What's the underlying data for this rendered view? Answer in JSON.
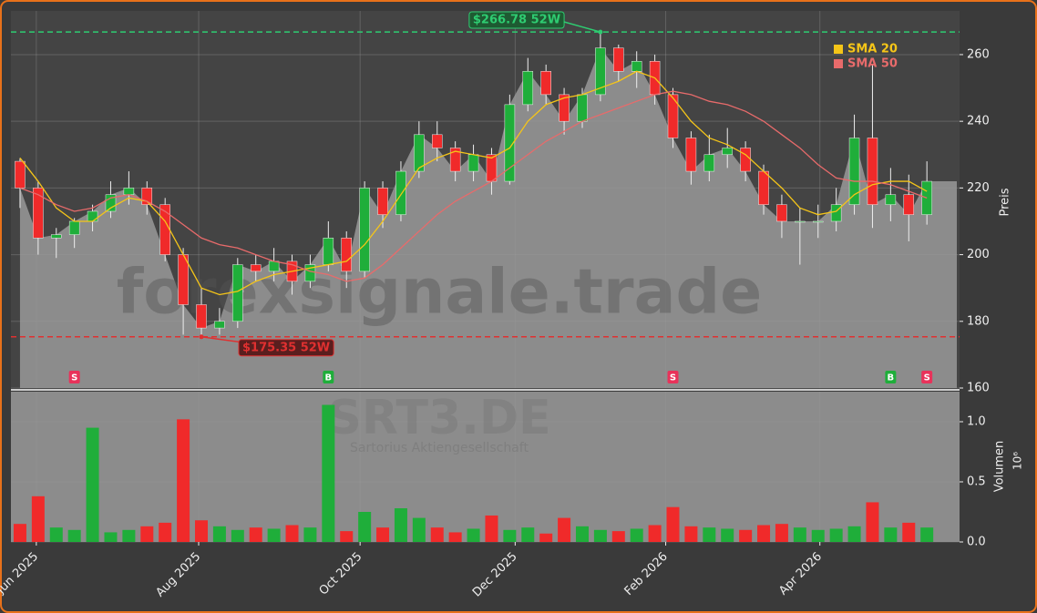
{
  "watermark": {
    "site": "forexsignale.trade",
    "symbol": "SRT3.DE",
    "company": "Sartorius Aktiengesellschaft"
  },
  "chart_data": [
    {
      "type": "candlestick",
      "y_label": "Preis",
      "up_color": "#1fae3a",
      "down_color": "#f02a2a",
      "categories": [
        null,
        null,
        null,
        null,
        null,
        null,
        null,
        null,
        null,
        null,
        null,
        null,
        null,
        null,
        null,
        null,
        null,
        null,
        null,
        null,
        null,
        null,
        null,
        null,
        null,
        null,
        null,
        null,
        null,
        null,
        null,
        null,
        null,
        null,
        null,
        null,
        null,
        null,
        null,
        null,
        null,
        null,
        null,
        null,
        null,
        null,
        null,
        null,
        null,
        null,
        null
      ],
      "xlim": [
        -0.5,
        51.8
      ],
      "xticks": [
        {
          "value": 0.9,
          "label": "Jun 2025"
        },
        {
          "value": 9.85,
          "label": "Aug 2025"
        },
        {
          "value": 18.75,
          "label": "Oct 2025"
        },
        {
          "value": 27.3,
          "label": "Dec 2025"
        },
        {
          "value": 35.6,
          "label": "Feb 2026"
        },
        {
          "value": 44.1,
          "label": "Apr 2026"
        }
      ],
      "ylim": [
        160,
        273.1
      ],
      "yticks": [
        160,
        180,
        200,
        220,
        240,
        260
      ],
      "grid": true,
      "open": [
        228,
        220,
        205,
        206,
        210,
        213,
        218,
        220,
        215,
        200,
        185,
        178,
        180,
        197,
        195,
        198,
        192,
        197,
        205,
        195,
        220,
        212,
        225,
        236,
        232,
        225,
        230,
        222,
        245,
        255,
        248,
        240,
        248,
        262,
        255,
        258,
        248,
        235,
        225,
        230,
        232,
        225,
        215,
        210,
        210,
        210,
        215,
        235,
        215,
        218,
        212
      ],
      "high": [
        229,
        222,
        208,
        211,
        215,
        222,
        225,
        222,
        217,
        202,
        190,
        184,
        199,
        200,
        202,
        200,
        200,
        210,
        207,
        222,
        222,
        228,
        240,
        240,
        234,
        233,
        232,
        248,
        259,
        257,
        250,
        250,
        267,
        263,
        261,
        260,
        250,
        237,
        236,
        238,
        234,
        227,
        218,
        214,
        215,
        220,
        242,
        257,
        226,
        224,
        228
      ],
      "low": [
        214,
        200,
        199,
        202,
        207,
        211,
        215,
        212,
        198,
        176,
        175,
        176,
        178,
        192,
        192,
        188,
        190,
        195,
        190,
        193,
        208,
        210,
        223,
        228,
        222,
        222,
        218,
        221,
        243,
        245,
        236,
        238,
        246,
        252,
        250,
        245,
        232,
        221,
        222,
        226,
        222,
        212,
        205,
        197,
        205,
        207,
        212,
        208,
        210,
        204,
        209
      ],
      "close": [
        220,
        205,
        206,
        210,
        213,
        218,
        220,
        215,
        200,
        185,
        178,
        180,
        197,
        195,
        198,
        192,
        197,
        205,
        195,
        220,
        212,
        225,
        236,
        232,
        225,
        230,
        222,
        245,
        255,
        248,
        240,
        248,
        262,
        255,
        258,
        248,
        235,
        225,
        230,
        232,
        225,
        215,
        210,
        210,
        210,
        215,
        235,
        215,
        218,
        212,
        222
      ],
      "series": [
        {
          "name": "SMA 20",
          "color": "#f5c518",
          "values": [
            229,
            222,
            214,
            210,
            210,
            214,
            217,
            216,
            210,
            200,
            190,
            188,
            189,
            192,
            194,
            195,
            196,
            197,
            198,
            203,
            210,
            218,
            226,
            229,
            231,
            230,
            229,
            232,
            240,
            245,
            247,
            248,
            250,
            252,
            255,
            253,
            247,
            240,
            235,
            233,
            230,
            225,
            220,
            214,
            212,
            213,
            218,
            221,
            222,
            222,
            219
          ]
        },
        {
          "name": "SMA 50",
          "color": "#e86b6b",
          "values": [
            220,
            218,
            215,
            213,
            214,
            217,
            218,
            216,
            213,
            209,
            205,
            203,
            202,
            200,
            198,
            197,
            195,
            194,
            192,
            193,
            197,
            202,
            207,
            212,
            216,
            219,
            222,
            226,
            230,
            234,
            237,
            240,
            242,
            244,
            246,
            248,
            249,
            248,
            246,
            245,
            243,
            240,
            236,
            232,
            227,
            223,
            222,
            222,
            221,
            219,
            217
          ]
        }
      ],
      "annotations": [
        {
          "label": "$266.78 52W",
          "value": 266.78,
          "color": "#2ecc71",
          "index": 32
        },
        {
          "label": "$175.35 52W",
          "value": 175.35,
          "color": "#e03030",
          "index": 10
        }
      ],
      "signals": [
        {
          "label": "S",
          "index": 3
        },
        {
          "label": "B",
          "index": 17
        },
        {
          "label": "S",
          "index": 36
        },
        {
          "label": "B",
          "index": 48
        },
        {
          "label": "S",
          "index": 50
        }
      ]
    },
    {
      "type": "bar",
      "y_label": "Volumen",
      "y_scale_label": "10⁶",
      "ylim": [
        0,
        1.25
      ],
      "yticks": [
        {
          "value": 0,
          "label": "0.0"
        },
        0.5,
        {
          "value": 1,
          "label": "1.0"
        }
      ],
      "grid": true,
      "values": [
        0.15,
        0.38,
        0.12,
        0.1,
        0.95,
        0.08,
        0.1,
        0.13,
        0.16,
        1.02,
        0.18,
        0.13,
        0.1,
        0.12,
        0.11,
        0.14,
        0.12,
        1.14,
        0.09,
        0.25,
        0.12,
        0.28,
        0.2,
        0.12,
        0.08,
        0.11,
        0.22,
        0.1,
        0.12,
        0.07,
        0.2,
        0.13,
        0.1,
        0.09,
        0.11,
        0.14,
        0.29,
        0.13,
        0.12,
        0.11,
        0.1,
        0.14,
        0.15,
        0.12,
        0.1,
        0.11,
        0.13,
        0.33,
        0.12,
        0.16,
        0.12
      ]
    }
  ]
}
